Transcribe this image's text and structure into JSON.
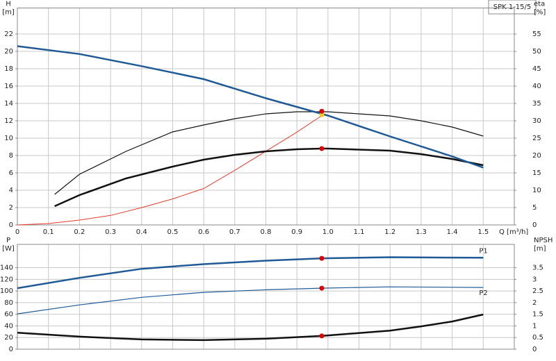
{
  "chart_data": [
    {
      "type": "line",
      "title": "SPK 1-15/5",
      "y_label": "H",
      "y_unit": "[m]",
      "y2_label": "eta",
      "y2_unit": "[%]",
      "x_label": "Q [m³/h]",
      "xlim": [
        0,
        1.6
      ],
      "xticks": [
        0,
        0.1,
        0.2,
        0.3,
        0.4,
        0.5,
        0.6,
        0.7,
        0.8,
        0.9,
        {
          "value": 1,
          "label": "1.0"
        },
        1.1,
        1.2,
        1.3,
        1.4,
        1.5
      ],
      "ylim": [
        0,
        25
      ],
      "yticks": [
        0,
        2,
        4,
        6,
        8,
        10,
        12,
        14,
        16,
        18,
        20,
        22
      ],
      "y2lim": [
        0,
        62.5
      ],
      "y2ticks": [
        0,
        5,
        10,
        15,
        20,
        25,
        30,
        35,
        40,
        45,
        50,
        55
      ],
      "grid": true,
      "series": [
        {
          "style": "line",
          "color": "#e83a2a",
          "width": 1,
          "axis": "y",
          "x": [
            0,
            0.1,
            0.2,
            0.3,
            0.4,
            0.5,
            0.6,
            0.7,
            0.8,
            0.9,
            0.98
          ],
          "values": [
            0,
            0.16,
            0.56,
            1.1,
            2,
            3,
            4.2,
            6.3,
            8.5,
            10.7,
            12.6
          ]
        },
        {
          "style": "line",
          "color": "#111111",
          "width": 1.2,
          "axis": "y2",
          "x": [
            0.12,
            0.2,
            0.35,
            0.5,
            0.6,
            0.7,
            0.8,
            0.9,
            1,
            1.1,
            1.2,
            1.3,
            1.4,
            1.5
          ],
          "values": [
            8.8,
            14.6,
            21.2,
            26.8,
            28.8,
            30.6,
            32,
            32.6,
            32.6,
            32,
            31.4,
            30,
            28.2,
            25.6
          ]
        },
        {
          "style": "line",
          "color": "#111111",
          "width": 2.5,
          "axis": "y2",
          "x": [
            0.12,
            0.2,
            0.35,
            0.5,
            0.6,
            0.7,
            0.8,
            0.9,
            0.98,
            1,
            1.2,
            1.3,
            1.4,
            1.5
          ],
          "values": [
            5.4,
            8.6,
            13.4,
            16.8,
            18.8,
            20.2,
            21.2,
            21.8,
            22,
            22,
            21.4,
            20.4,
            19,
            17.2
          ]
        },
        {
          "style": "line",
          "color": "#1f5a96",
          "width": 2.5,
          "axis": "y",
          "x": [
            0,
            0.2,
            0.4,
            0.6,
            0.8,
            0.98,
            1,
            1.2,
            1.4,
            1.5
          ],
          "values": [
            20.6,
            19.7,
            18.3,
            16.8,
            14.6,
            12.8,
            12.6,
            10.2,
            7.9,
            6.6
          ]
        },
        {
          "style": "dot",
          "color": "#f2c81a",
          "axis": "y",
          "x": [
            0.98
          ],
          "values": [
            12.7
          ]
        },
        {
          "style": "dot",
          "color": "#e00000",
          "axis": "y",
          "x": [
            0.98
          ],
          "values": [
            13.1
          ]
        },
        {
          "style": "dot",
          "color": "#e00000",
          "axis": "y2",
          "x": [
            0.98
          ],
          "values": [
            22
          ]
        }
      ]
    },
    {
      "type": "line",
      "y_label": "P",
      "y_unit": "[W]",
      "y2_label": "NPSH",
      "y2_unit": "[m]",
      "xlim": [
        0,
        1.6
      ],
      "ylim": [
        0,
        180
      ],
      "yticks": [
        0,
        20,
        40,
        60,
        80,
        100,
        120,
        140
      ],
      "y2lim": [
        0,
        4.5
      ],
      "y2ticks": [
        0,
        0.5,
        1,
        1.5,
        2,
        2.5,
        3,
        3.5
      ],
      "grid": true,
      "series": [
        {
          "name": "P1",
          "style": "line",
          "color": "#1f5a96",
          "width": 2.5,
          "axis": "y",
          "x": [
            0,
            0.2,
            0.4,
            0.6,
            0.8,
            0.98,
            1.2,
            1.5
          ],
          "values": [
            104.8,
            122.6,
            138,
            146,
            152,
            156,
            158,
            157
          ]
        },
        {
          "name": "P2",
          "style": "line",
          "color": "#1f5a96",
          "width": 1.2,
          "axis": "y",
          "x": [
            0,
            0.2,
            0.4,
            0.6,
            0.8,
            0.98,
            1.2,
            1.5
          ],
          "values": [
            60.7,
            76,
            89,
            97.6,
            102,
            104.8,
            107,
            106
          ]
        },
        {
          "style": "line",
          "color": "#111111",
          "width": 2.5,
          "axis": "y2",
          "x": [
            0,
            0.2,
            0.4,
            0.6,
            0.8,
            0.98,
            1.2,
            1.3,
            1.4,
            1.5
          ],
          "values": [
            0.71,
            0.54,
            0.42,
            0.39,
            0.45,
            0.57,
            0.8,
            0.98,
            1.19,
            1.49
          ]
        },
        {
          "style": "dot",
          "color": "#e00000",
          "axis": "y",
          "x": [
            0.98
          ],
          "values": [
            156
          ]
        },
        {
          "style": "dot",
          "color": "#e00000",
          "axis": "y",
          "x": [
            0.98
          ],
          "values": [
            104.8
          ]
        },
        {
          "style": "dot",
          "color": "#e00000",
          "axis": "y2",
          "x": [
            0.98
          ],
          "values": [
            0.57
          ]
        }
      ]
    }
  ]
}
